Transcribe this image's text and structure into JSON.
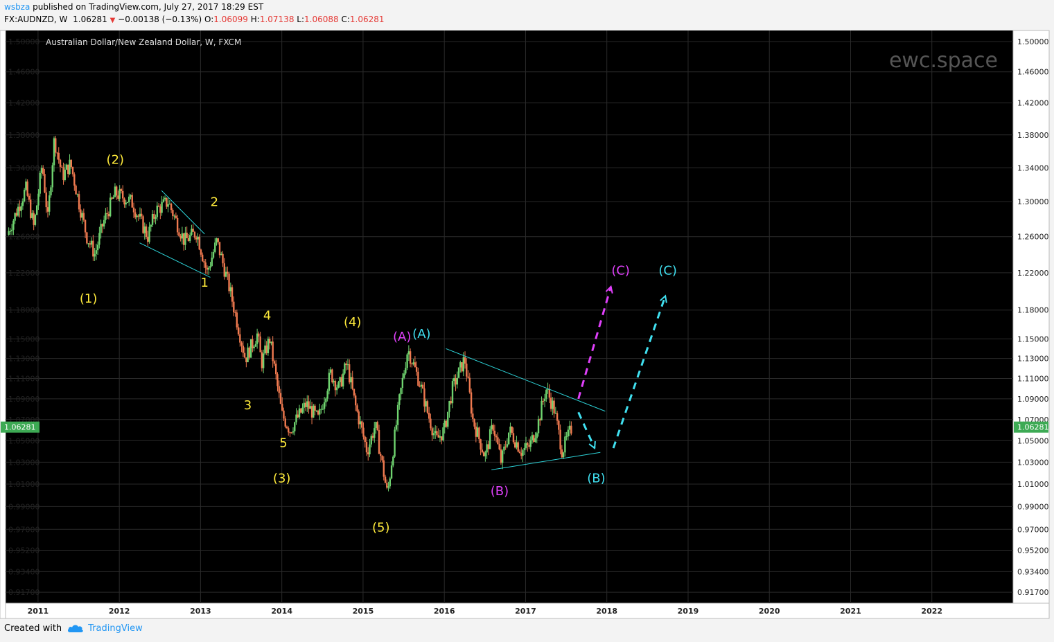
{
  "header": {
    "user": "wsbza",
    "published": "published on TradingView.com, July 27, 2017 18:29 EST",
    "symbol": "FX:AUDNZD, W",
    "last": "1.06281",
    "change": "−0.00138 (−0.13%)",
    "o_label": "O:",
    "o": "1.06099",
    "h_label": "H:",
    "h": "1.07138",
    "l_label": "L:",
    "l": "1.06088",
    "c_label": "C:",
    "c": "1.06281"
  },
  "footer": {
    "created": "Created with",
    "brand": "TradingView"
  },
  "colors": {
    "background": "#000000",
    "grid": "#2a2a2a",
    "up_candle": "#6fd36f",
    "down_candle": "#f07a50",
    "trendline": "#2dd3d8",
    "label_yellow": "#ffeb3b",
    "label_magenta": "#e040fb",
    "label_cyan": "#40e0f0",
    "price_tag": "#3daa54"
  },
  "chart_data": {
    "type": "candlestick",
    "title": "Australian Dollar/New Zealand Dollar, W, FXCM",
    "watermark": "ewc.space",
    "x_ticks": [
      "2011",
      "2012",
      "2013",
      "2014",
      "2015",
      "2016",
      "2017",
      "2018",
      "2019",
      "2020",
      "2021",
      "2022"
    ],
    "y_ticks": [
      "1.50000",
      "1.46000",
      "1.42000",
      "1.38000",
      "1.34000",
      "1.30000",
      "1.26000",
      "1.22000",
      "1.18000",
      "1.15000",
      "1.13000",
      "1.11000",
      "1.09000",
      "1.07000",
      "1.05000",
      "1.03000",
      "1.01000",
      "0.99000",
      "0.97000",
      "0.95200",
      "0.93400",
      "0.91700"
    ],
    "y_scale": "log",
    "ylim": [
      0.908,
      1.515
    ],
    "xlim": [
      2010.6,
      2023.0
    ],
    "last_price": "1.06281",
    "close_path": [
      [
        2010.62,
        1.262
      ],
      [
        2010.85,
        1.315
      ],
      [
        2010.95,
        1.27
      ],
      [
        2011.05,
        1.345
      ],
      [
        2011.12,
        1.28
      ],
      [
        2011.2,
        1.375
      ],
      [
        2011.3,
        1.33
      ],
      [
        2011.4,
        1.345
      ],
      [
        2011.5,
        1.3
      ],
      [
        2011.6,
        1.26
      ],
      [
        2011.7,
        1.24
      ],
      [
        2011.8,
        1.275
      ],
      [
        2011.95,
        1.31
      ],
      [
        2012.15,
        1.3
      ],
      [
        2012.35,
        1.26
      ],
      [
        2012.45,
        1.29
      ],
      [
        2012.6,
        1.3
      ],
      [
        2012.8,
        1.255
      ],
      [
        2012.95,
        1.265
      ],
      [
        2013.08,
        1.22
      ],
      [
        2013.2,
        1.255
      ],
      [
        2013.35,
        1.205
      ],
      [
        2013.55,
        1.13
      ],
      [
        2013.7,
        1.155
      ],
      [
        2013.75,
        1.125
      ],
      [
        2013.85,
        1.15
      ],
      [
        2014.0,
        1.075
      ],
      [
        2014.1,
        1.06
      ],
      [
        2014.3,
        1.085
      ],
      [
        2014.45,
        1.07
      ],
      [
        2014.6,
        1.115
      ],
      [
        2014.7,
        1.1
      ],
      [
        2014.8,
        1.125
      ],
      [
        2014.9,
        1.085
      ],
      [
        2015.05,
        1.04
      ],
      [
        2015.15,
        1.065
      ],
      [
        2015.3,
        1.0
      ],
      [
        2015.45,
        1.09
      ],
      [
        2015.55,
        1.14
      ],
      [
        2015.7,
        1.105
      ],
      [
        2015.8,
        1.075
      ],
      [
        2015.9,
        1.05
      ],
      [
        2016.0,
        1.06
      ],
      [
        2016.1,
        1.1
      ],
      [
        2016.25,
        1.13
      ],
      [
        2016.35,
        1.07
      ],
      [
        2016.5,
        1.035
      ],
      [
        2016.6,
        1.065
      ],
      [
        2016.7,
        1.03
      ],
      [
        2016.8,
        1.06
      ],
      [
        2016.95,
        1.04
      ],
      [
        2017.05,
        1.045
      ],
      [
        2017.15,
        1.065
      ],
      [
        2017.25,
        1.1
      ],
      [
        2017.35,
        1.08
      ],
      [
        2017.45,
        1.04
      ],
      [
        2017.57,
        1.0628
      ]
    ],
    "wave_labels": [
      {
        "text": "(1)",
        "x": 2011.62,
        "y": 1.188,
        "color": "label_yellow"
      },
      {
        "text": "(2)",
        "x": 2011.95,
        "y": 1.345,
        "color": "label_yellow"
      },
      {
        "text": "1",
        "x": 2313.05,
        "y": 1.205,
        "color": "label_yellow"
      },
      {
        "text": "2",
        "x": 2013.17,
        "y": 1.295,
        "color": "label_yellow"
      },
      {
        "text": "3",
        "x": 2013.58,
        "y": 1.08,
        "color": "label_yellow"
      },
      {
        "text": "4",
        "x": 2013.82,
        "y": 1.17,
        "color": "label_yellow"
      },
      {
        "text": "5",
        "x": 2014.02,
        "y": 1.044,
        "color": "label_yellow"
      },
      {
        "text": "(3)",
        "x": 2014.0,
        "y": 1.0115,
        "color": "label_yellow"
      },
      {
        "text": "(4)",
        "x": 2014.87,
        "y": 1.163,
        "color": "label_yellow"
      },
      {
        "text": "(5)",
        "x": 2015.22,
        "y": 0.968,
        "color": "label_yellow"
      },
      {
        "text": "(A)",
        "x": 2015.48,
        "y": 1.148,
        "color": "label_magenta"
      },
      {
        "text": "(A)",
        "x": 2015.72,
        "y": 1.151,
        "color": "label_cyan"
      },
      {
        "text": "(B)",
        "x": 2016.68,
        "y": 1.0,
        "color": "label_magenta"
      },
      {
        "text": "(B)",
        "x": 2017.87,
        "y": 1.0115,
        "color": "label_cyan"
      },
      {
        "text": "(C)",
        "x": 2018.17,
        "y": 1.218,
        "color": "label_magenta"
      },
      {
        "text": "(C)",
        "x": 2018.75,
        "y": 1.218,
        "color": "label_cyan"
      }
    ],
    "trendlines": [
      {
        "from": [
          2012.52,
          1.313
        ],
        "to": [
          2013.05,
          1.263
        ]
      },
      {
        "from": [
          2012.25,
          1.253
        ],
        "to": [
          2013.12,
          1.215
        ]
      },
      {
        "from": [
          2016.02,
          1.14
        ],
        "to": [
          2017.98,
          1.078
        ]
      },
      {
        "from": [
          2016.58,
          1.023
        ],
        "to": [
          2017.92,
          1.039
        ]
      }
    ],
    "projections": [
      {
        "color": "label_magenta",
        "points": [
          [
            2017.65,
            1.09
          ],
          [
            2018.05,
            1.205
          ]
        ]
      },
      {
        "color": "label_cyan",
        "points": [
          [
            2017.65,
            1.077
          ],
          [
            2017.85,
            1.043
          ]
        ]
      },
      {
        "color": "label_cyan",
        "points": [
          [
            2018.08,
            1.043
          ],
          [
            2018.72,
            1.195
          ]
        ]
      }
    ]
  }
}
